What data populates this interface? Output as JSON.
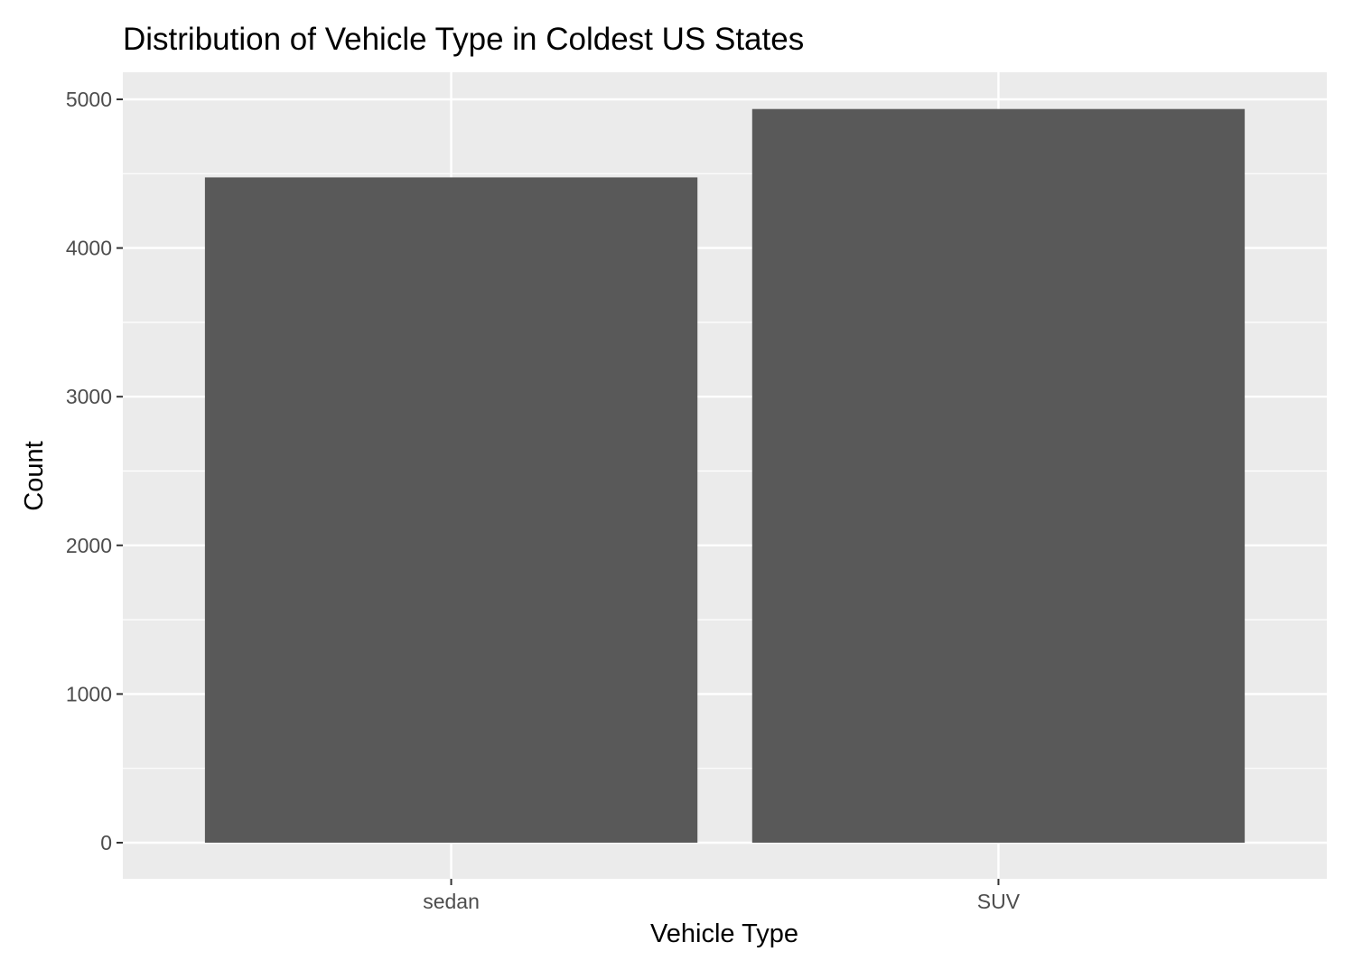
{
  "chart_data": {
    "type": "bar",
    "title": "Distribution of Vehicle Type in Coldest US States",
    "xlabel": "Vehicle Type",
    "ylabel": "Count",
    "categories": [
      "sedan",
      "SUV"
    ],
    "values": [
      4475,
      4935
    ],
    "ylim": [
      0,
      5000
    ],
    "y_ticks": [
      0,
      1000,
      2000,
      3000,
      4000,
      5000
    ],
    "grid": true,
    "legend": "none",
    "colors": {
      "panel_background": "#ebebeb",
      "grid": "#ffffff",
      "bar_fill": "#595959",
      "tick_label": "#4d4d4d",
      "tick_mark": "#333333",
      "text": "#000000"
    }
  }
}
